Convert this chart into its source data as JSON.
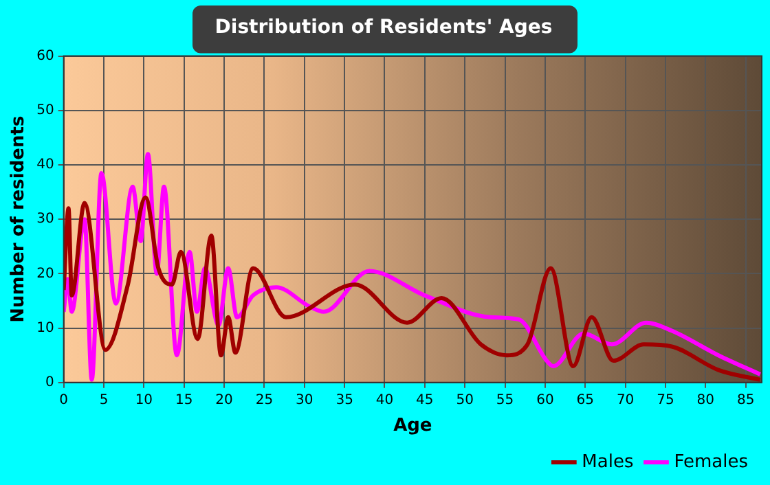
{
  "chart_data": {
    "type": "line",
    "title": "Distribution of Residents' Ages",
    "xlabel": "Age",
    "ylabel": "Number of residents",
    "xlim": [
      0,
      87
    ],
    "xticks": [
      0,
      5,
      10,
      15,
      20,
      25,
      30,
      35,
      40,
      45,
      50,
      55,
      60,
      65,
      70,
      75,
      80,
      85
    ],
    "ylim": [
      0,
      60
    ],
    "yticks": [
      0,
      10,
      20,
      30,
      40,
      50,
      60
    ],
    "grid": true,
    "legend": "bottom right",
    "marker": "none",
    "line_style": "solid",
    "series": [
      {
        "name": "Males",
        "color": "#a00000",
        "x": [
          0,
          0.6,
          1,
          2.6,
          5.2,
          8,
          10.2,
          11.8,
          13.5,
          14.6,
          16.7,
          18.4,
          19.6,
          20.5,
          21.4,
          23.6,
          27.7,
          36.3,
          42.8,
          47.1,
          52,
          55.2,
          57.8,
          60.7,
          63.5,
          65.8,
          68.5,
          72.3,
          75.8,
          81.6,
          86.8
        ],
        "values": [
          17,
          32,
          16,
          33,
          6,
          18,
          34,
          21,
          18,
          24,
          8,
          27,
          5,
          12,
          5.5,
          21,
          12,
          18,
          11,
          15.5,
          7,
          5,
          7,
          21,
          3,
          12,
          4,
          7,
          6.6,
          2.3,
          0.5
        ]
      },
      {
        "name": "Females",
        "color": "#ff00ff",
        "x": [
          0,
          0.5,
          1,
          2.6,
          3.5,
          4.7,
          6.5,
          8.6,
          9.6,
          10.5,
          11.6,
          12.5,
          14.1,
          15.7,
          16.6,
          17.6,
          19.3,
          20.5,
          21.6,
          23.6,
          26.5,
          30.6,
          32.4,
          38.1,
          45,
          53.2,
          56.7,
          60.2,
          61,
          64.8,
          68.3,
          72.6,
          75.8,
          81.6,
          86.8
        ],
        "values": [
          13,
          19,
          13,
          30,
          0.5,
          38.5,
          14.5,
          36,
          26,
          42,
          20,
          36,
          5,
          24,
          13,
          21,
          10.5,
          21,
          12,
          16,
          17.5,
          14,
          13,
          20.5,
          16,
          12,
          11.6,
          4,
          3,
          9,
          7,
          11,
          9.5,
          5,
          1.5
        ]
      }
    ]
  }
}
